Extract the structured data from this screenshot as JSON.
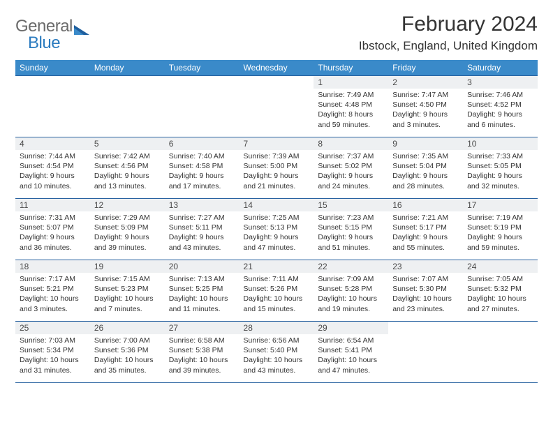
{
  "logo": {
    "word1": "General",
    "word2": "Blue"
  },
  "title": "February 2024",
  "location": "Ibstock, England, United Kingdom",
  "colors": {
    "header_bg": "#3a8ac9",
    "header_text": "#ffffff",
    "rule": "#2761a0",
    "daynum_bg": "#eef0f2",
    "body_text": "#333333",
    "logo_gray": "#6b6b6b",
    "logo_blue": "#2b7bbf",
    "page_bg": "#ffffff"
  },
  "dow": [
    "Sunday",
    "Monday",
    "Tuesday",
    "Wednesday",
    "Thursday",
    "Friday",
    "Saturday"
  ],
  "weeks": [
    [
      null,
      null,
      null,
      null,
      {
        "n": "1",
        "sr": "7:49 AM",
        "ss": "4:48 PM",
        "dl": "8 hours and 59 minutes."
      },
      {
        "n": "2",
        "sr": "7:47 AM",
        "ss": "4:50 PM",
        "dl": "9 hours and 3 minutes."
      },
      {
        "n": "3",
        "sr": "7:46 AM",
        "ss": "4:52 PM",
        "dl": "9 hours and 6 minutes."
      }
    ],
    [
      {
        "n": "4",
        "sr": "7:44 AM",
        "ss": "4:54 PM",
        "dl": "9 hours and 10 minutes."
      },
      {
        "n": "5",
        "sr": "7:42 AM",
        "ss": "4:56 PM",
        "dl": "9 hours and 13 minutes."
      },
      {
        "n": "6",
        "sr": "7:40 AM",
        "ss": "4:58 PM",
        "dl": "9 hours and 17 minutes."
      },
      {
        "n": "7",
        "sr": "7:39 AM",
        "ss": "5:00 PM",
        "dl": "9 hours and 21 minutes."
      },
      {
        "n": "8",
        "sr": "7:37 AM",
        "ss": "5:02 PM",
        "dl": "9 hours and 24 minutes."
      },
      {
        "n": "9",
        "sr": "7:35 AM",
        "ss": "5:04 PM",
        "dl": "9 hours and 28 minutes."
      },
      {
        "n": "10",
        "sr": "7:33 AM",
        "ss": "5:05 PM",
        "dl": "9 hours and 32 minutes."
      }
    ],
    [
      {
        "n": "11",
        "sr": "7:31 AM",
        "ss": "5:07 PM",
        "dl": "9 hours and 36 minutes."
      },
      {
        "n": "12",
        "sr": "7:29 AM",
        "ss": "5:09 PM",
        "dl": "9 hours and 39 minutes."
      },
      {
        "n": "13",
        "sr": "7:27 AM",
        "ss": "5:11 PM",
        "dl": "9 hours and 43 minutes."
      },
      {
        "n": "14",
        "sr": "7:25 AM",
        "ss": "5:13 PM",
        "dl": "9 hours and 47 minutes."
      },
      {
        "n": "15",
        "sr": "7:23 AM",
        "ss": "5:15 PM",
        "dl": "9 hours and 51 minutes."
      },
      {
        "n": "16",
        "sr": "7:21 AM",
        "ss": "5:17 PM",
        "dl": "9 hours and 55 minutes."
      },
      {
        "n": "17",
        "sr": "7:19 AM",
        "ss": "5:19 PM",
        "dl": "9 hours and 59 minutes."
      }
    ],
    [
      {
        "n": "18",
        "sr": "7:17 AM",
        "ss": "5:21 PM",
        "dl": "10 hours and 3 minutes."
      },
      {
        "n": "19",
        "sr": "7:15 AM",
        "ss": "5:23 PM",
        "dl": "10 hours and 7 minutes."
      },
      {
        "n": "20",
        "sr": "7:13 AM",
        "ss": "5:25 PM",
        "dl": "10 hours and 11 minutes."
      },
      {
        "n": "21",
        "sr": "7:11 AM",
        "ss": "5:26 PM",
        "dl": "10 hours and 15 minutes."
      },
      {
        "n": "22",
        "sr": "7:09 AM",
        "ss": "5:28 PM",
        "dl": "10 hours and 19 minutes."
      },
      {
        "n": "23",
        "sr": "7:07 AM",
        "ss": "5:30 PM",
        "dl": "10 hours and 23 minutes."
      },
      {
        "n": "24",
        "sr": "7:05 AM",
        "ss": "5:32 PM",
        "dl": "10 hours and 27 minutes."
      }
    ],
    [
      {
        "n": "25",
        "sr": "7:03 AM",
        "ss": "5:34 PM",
        "dl": "10 hours and 31 minutes."
      },
      {
        "n": "26",
        "sr": "7:00 AM",
        "ss": "5:36 PM",
        "dl": "10 hours and 35 minutes."
      },
      {
        "n": "27",
        "sr": "6:58 AM",
        "ss": "5:38 PM",
        "dl": "10 hours and 39 minutes."
      },
      {
        "n": "28",
        "sr": "6:56 AM",
        "ss": "5:40 PM",
        "dl": "10 hours and 43 minutes."
      },
      {
        "n": "29",
        "sr": "6:54 AM",
        "ss": "5:41 PM",
        "dl": "10 hours and 47 minutes."
      },
      null,
      null
    ]
  ],
  "labels": {
    "sunrise": "Sunrise: ",
    "sunset": "Sunset: ",
    "daylight": "Daylight: "
  }
}
